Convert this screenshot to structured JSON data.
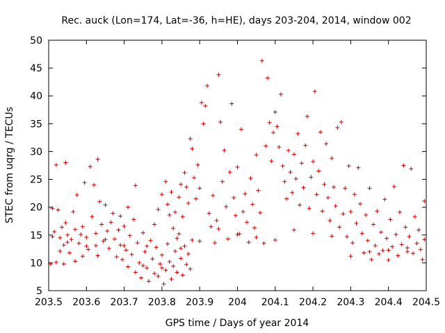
{
  "chart_data": {
    "type": "scatter",
    "title": "Rec. auck (Lon=174, Lat=-36, h=HE), days 203-204, 2014, window 002",
    "xlabel": "GPS time / Days of year 2014",
    "ylabel": "STEC from uqrg / TECUs",
    "xlim": [
      203.5,
      204.5
    ],
    "ylim": [
      5,
      50
    ],
    "xticks": [
      203.5,
      203.6,
      203.7,
      203.8,
      203.9,
      204.0,
      204.1,
      204.2,
      204.3,
      204.4,
      204.5
    ],
    "xtick_labels": [
      "203.5",
      "203.6",
      "203.7",
      "203.8",
      "203.9",
      "204",
      "204.1",
      "204.2",
      "204.3",
      "204.4",
      "204.5"
    ],
    "yticks": [
      5,
      10,
      15,
      20,
      25,
      30,
      35,
      40,
      45,
      50
    ],
    "ytick_labels": [
      "5",
      "10",
      "15",
      "20",
      "25",
      "30",
      "35",
      "40",
      "45",
      "50"
    ],
    "grid": false,
    "marker": "+",
    "color": "#cc0000",
    "series": [
      {
        "name": "STEC",
        "points": [
          [
            203.505,
            9.8
          ],
          [
            203.51,
            14.7
          ],
          [
            203.51,
            19.8
          ],
          [
            203.515,
            15.6
          ],
          [
            203.52,
            27.6
          ],
          [
            203.52,
            10.1
          ],
          [
            203.525,
            19.5
          ],
          [
            203.53,
            14.5
          ],
          [
            203.53,
            12.1
          ],
          [
            203.535,
            16.4
          ],
          [
            203.54,
            13.2
          ],
          [
            203.54,
            9.8
          ],
          [
            203.545,
            28.0
          ],
          [
            203.545,
            17.2
          ],
          [
            203.55,
            15.0
          ],
          [
            203.555,
            11.8
          ],
          [
            203.56,
            14.2
          ],
          [
            203.565,
            19.2
          ],
          [
            203.57,
            10.3
          ],
          [
            203.57,
            16.0
          ],
          [
            203.575,
            22.2
          ],
          [
            203.58,
            13.5
          ],
          [
            203.585,
            15.1
          ],
          [
            203.59,
            16.5
          ],
          [
            203.59,
            11.2
          ],
          [
            203.595,
            24.4
          ],
          [
            203.6,
            14.6
          ],
          [
            203.605,
            12.4
          ],
          [
            203.61,
            27.3
          ],
          [
            203.615,
            18.3
          ],
          [
            203.62,
            24.0
          ],
          [
            203.625,
            15.3
          ],
          [
            203.625,
            13.1
          ],
          [
            203.63,
            28.6
          ],
          [
            203.63,
            11.3
          ],
          [
            203.635,
            21.0
          ],
          [
            203.64,
            16.9
          ],
          [
            203.645,
            13.9
          ],
          [
            203.65,
            20.4
          ],
          [
            203.655,
            15.7
          ],
          [
            203.66,
            12.6
          ],
          [
            203.665,
            17.3
          ],
          [
            203.67,
            18.9
          ],
          [
            203.675,
            14.3
          ],
          [
            203.68,
            11.1
          ],
          [
            203.685,
            15.9
          ],
          [
            203.69,
            13.2
          ],
          [
            203.695,
            10.6
          ],
          [
            203.7,
            16.6
          ],
          [
            203.705,
            12.3
          ],
          [
            203.71,
            9.3
          ],
          [
            203.715,
            14.9
          ],
          [
            203.72,
            11.5
          ],
          [
            203.725,
            17.8
          ],
          [
            203.73,
            8.3
          ],
          [
            203.735,
            13.6
          ],
          [
            203.74,
            10.0
          ],
          [
            203.745,
            7.3
          ],
          [
            203.75,
            15.4
          ],
          [
            203.755,
            12.0
          ],
          [
            203.76,
            9.1
          ],
          [
            203.765,
            6.7
          ],
          [
            203.77,
            14.0
          ],
          [
            203.775,
            10.7
          ],
          [
            203.78,
            8.1
          ],
          [
            203.785,
            12.8
          ],
          [
            203.79,
            7.6
          ],
          [
            203.795,
            9.8
          ],
          [
            203.8,
            11.4
          ],
          [
            203.805,
            6.2
          ],
          [
            203.81,
            8.7
          ],
          [
            203.815,
            13.4
          ],
          [
            203.82,
            10.2
          ],
          [
            203.825,
            7.1
          ],
          [
            203.83,
            9.4
          ],
          [
            203.835,
            12.1
          ],
          [
            203.84,
            8.3
          ],
          [
            203.845,
            15.2
          ],
          [
            203.85,
            10.8
          ],
          [
            203.855,
            7.8
          ],
          [
            203.86,
            13.0
          ],
          [
            203.865,
            9.7
          ],
          [
            203.87,
            11.6
          ],
          [
            203.875,
            8.9
          ],
          [
            203.88,
            14.1
          ],
          [
            203.76,
            13.0
          ],
          [
            203.78,
            16.9
          ],
          [
            203.79,
            19.6
          ],
          [
            203.8,
            22.3
          ],
          [
            203.81,
            24.6
          ],
          [
            203.815,
            20.5
          ],
          [
            203.82,
            18.6
          ],
          [
            203.825,
            22.7
          ],
          [
            203.83,
            16.2
          ],
          [
            203.835,
            19.1
          ],
          [
            203.84,
            14.4
          ],
          [
            203.845,
            21.8
          ],
          [
            203.85,
            24.1
          ],
          [
            203.855,
            18.3
          ],
          [
            203.86,
            26.2
          ],
          [
            203.865,
            23.6
          ],
          [
            203.87,
            20.7
          ],
          [
            203.875,
            32.3
          ],
          [
            203.88,
            30.5
          ],
          [
            203.885,
            25.3
          ],
          [
            203.89,
            21.5
          ],
          [
            203.895,
            27.6
          ],
          [
            203.9,
            23.4
          ],
          [
            203.905,
            38.8
          ],
          [
            203.91,
            35.0
          ],
          [
            203.915,
            38.2
          ],
          [
            203.92,
            41.8
          ],
          [
            203.925,
            18.9
          ],
          [
            203.93,
            16.5
          ],
          [
            203.935,
            22.1
          ],
          [
            203.94,
            13.6
          ],
          [
            203.945,
            17.6
          ],
          [
            203.95,
            43.8
          ],
          [
            203.955,
            35.3
          ],
          [
            203.96,
            24.6
          ],
          [
            203.965,
            30.2
          ],
          [
            203.97,
            20.1
          ],
          [
            203.975,
            14.3
          ],
          [
            203.98,
            26.3
          ],
          [
            203.985,
            38.6
          ],
          [
            203.99,
            21.7
          ],
          [
            203.995,
            18.5
          ],
          [
            204.0,
            27.2
          ],
          [
            204.005,
            15.2
          ],
          [
            204.01,
            34.0
          ],
          [
            204.015,
            19.2
          ],
          [
            204.02,
            22.4
          ],
          [
            204.025,
            17.3
          ],
          [
            204.03,
            13.7
          ],
          [
            204.035,
            25.2
          ],
          [
            204.04,
            20.5
          ],
          [
            204.045,
            16.3
          ],
          [
            204.05,
            29.4
          ],
          [
            204.055,
            23.0
          ],
          [
            204.06,
            19.0
          ],
          [
            204.065,
            46.3
          ],
          [
            204.07,
            13.5
          ],
          [
            204.075,
            31.0
          ],
          [
            204.08,
            43.2
          ],
          [
            204.085,
            35.2
          ],
          [
            204.09,
            28.3
          ],
          [
            204.095,
            33.4
          ],
          [
            204.1,
            37.1
          ],
          [
            204.105,
            34.5
          ],
          [
            204.11,
            30.8
          ],
          [
            204.115,
            40.3
          ],
          [
            204.12,
            27.4
          ],
          [
            204.125,
            24.6
          ],
          [
            204.13,
            21.5
          ],
          [
            204.135,
            30.2
          ],
          [
            204.14,
            26.3
          ],
          [
            204.145,
            22.6
          ],
          [
            204.15,
            29.5
          ],
          [
            204.155,
            25.1
          ],
          [
            204.16,
            33.2
          ],
          [
            204.165,
            20.4
          ],
          [
            204.17,
            27.9
          ],
          [
            204.175,
            23.5
          ],
          [
            204.18,
            31.1
          ],
          [
            204.185,
            36.3
          ],
          [
            204.19,
            19.8
          ],
          [
            204.195,
            25.4
          ],
          [
            204.2,
            28.2
          ],
          [
            204.205,
            40.8
          ],
          [
            204.21,
            22.3
          ],
          [
            204.215,
            26.5
          ],
          [
            204.22,
            33.5
          ],
          [
            204.225,
            19.3
          ],
          [
            204.23,
            24.1
          ],
          [
            204.235,
            31.4
          ],
          [
            204.24,
            21.7
          ],
          [
            204.245,
            17.6
          ],
          [
            204.25,
            28.8
          ],
          [
            204.255,
            23.6
          ],
          [
            204.26,
            20.2
          ],
          [
            204.265,
            34.3
          ],
          [
            204.27,
            16.4
          ],
          [
            204.275,
            35.3
          ],
          [
            204.28,
            18.8
          ],
          [
            204.285,
            23.4
          ],
          [
            204.29,
            14.7
          ],
          [
            204.295,
            27.4
          ],
          [
            204.3,
            19.2
          ],
          [
            204.305,
            13.6
          ],
          [
            204.31,
            22.3
          ],
          [
            204.315,
            17.1
          ],
          [
            204.32,
            27.1
          ],
          [
            204.325,
            20.6
          ],
          [
            204.33,
            15.3
          ],
          [
            204.335,
            11.8
          ],
          [
            204.34,
            18.6
          ],
          [
            204.345,
            14.0
          ],
          [
            204.35,
            23.4
          ],
          [
            204.355,
            10.6
          ],
          [
            204.36,
            16.9
          ],
          [
            204.365,
            13.1
          ],
          [
            204.37,
            19.3
          ],
          [
            204.375,
            11.6
          ],
          [
            204.38,
            15.5
          ],
          [
            204.385,
            12.2
          ],
          [
            204.39,
            21.4
          ],
          [
            204.395,
            14.4
          ],
          [
            204.4,
            10.5
          ],
          [
            204.405,
            17.8
          ],
          [
            204.41,
            12.9
          ],
          [
            204.415,
            23.7
          ],
          [
            204.42,
            15.1
          ],
          [
            204.425,
            11.3
          ],
          [
            204.43,
            19.1
          ],
          [
            204.435,
            13.3
          ],
          [
            204.44,
            27.5
          ],
          [
            204.445,
            16.4
          ],
          [
            204.45,
            12.0
          ],
          [
            204.455,
            14.7
          ],
          [
            204.46,
            26.9
          ],
          [
            204.465,
            11.7
          ],
          [
            204.47,
            18.3
          ],
          [
            204.475,
            13.5
          ],
          [
            204.48,
            15.9
          ],
          [
            204.485,
            12.4
          ],
          [
            204.49,
            10.6
          ],
          [
            204.495,
            21.1
          ],
          [
            204.495,
            14.2
          ],
          [
            203.55,
            13.7
          ],
          [
            203.6,
            13.0
          ],
          [
            203.65,
            14.2
          ],
          [
            203.7,
            13.1
          ],
          [
            203.75,
            9.5
          ],
          [
            203.8,
            9.1
          ],
          [
            203.85,
            12.6
          ],
          [
            203.9,
            13.9
          ],
          [
            203.95,
            16.1
          ],
          [
            204.0,
            15.1
          ],
          [
            204.05,
            14.6
          ],
          [
            204.1,
            14.1
          ],
          [
            204.15,
            15.9
          ],
          [
            204.2,
            15.3
          ],
          [
            204.25,
            14.8
          ],
          [
            204.3,
            11.2
          ],
          [
            204.35,
            12.0
          ],
          [
            204.4,
            12.3
          ],
          [
            204.45,
            12.7
          ],
          [
            203.71,
            20.0
          ],
          [
            203.73,
            23.9
          ],
          [
            203.69,
            18.4
          ]
        ]
      }
    ]
  }
}
